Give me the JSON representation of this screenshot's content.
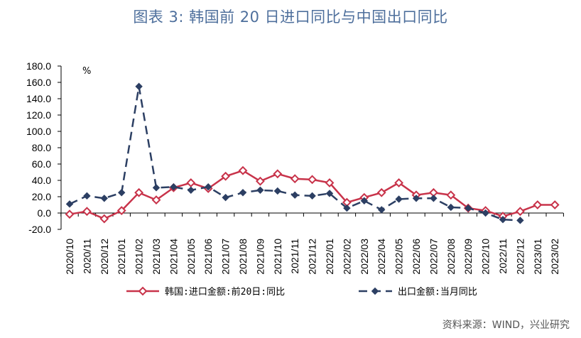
{
  "title": "图表 3:   韩国前 20 日进口同比与中国出口同比",
  "source": "资料来源：WIND，兴业研究",
  "chart_data": {
    "type": "line",
    "unit": "%",
    "ylim": [
      -20,
      180
    ],
    "yticks": [
      "-20.0",
      "0.0",
      "20.0",
      "40.0",
      "60.0",
      "80.0",
      "100.0",
      "120.0",
      "140.0",
      "160.0",
      "180.0"
    ],
    "grid": false,
    "legend_position": "bottom",
    "categories": [
      "2020/10",
      "2020/11",
      "2020/12",
      "2021/01",
      "2021/02",
      "2021/03",
      "2021/04",
      "2021/05",
      "2021/06",
      "2021/07",
      "2021/08",
      "2021/09",
      "2021/10",
      "2021/11",
      "2021/12",
      "2022/01",
      "2022/02",
      "2022/03",
      "2022/04",
      "2022/05",
      "2022/06",
      "2022/07",
      "2022/08",
      "2022/09",
      "2022/10",
      "2022/11",
      "2022/12",
      "2023/01",
      "2023/02"
    ],
    "series": [
      {
        "name": "韩国:进口金额:前20日:同比",
        "color": "#c8334a",
        "style": "solid",
        "marker": "diamond",
        "values": [
          -1.5,
          2,
          -7,
          3,
          25,
          16,
          31,
          37,
          30,
          45,
          52,
          39,
          48,
          42,
          41,
          37,
          13,
          19,
          25,
          37,
          22,
          25,
          22,
          6,
          3,
          -4,
          2,
          10,
          10
        ]
      },
      {
        "name": "出口金额:当月同比",
        "color": "#2c3f63",
        "style": "dashed",
        "marker": "diamond",
        "values": [
          11,
          21,
          18,
          25,
          155,
          31,
          32,
          28,
          32,
          19,
          25,
          28,
          27,
          22,
          21,
          24,
          6,
          15,
          4,
          17,
          18,
          18,
          7,
          6,
          0,
          -8,
          -9,
          null,
          null
        ]
      }
    ]
  }
}
